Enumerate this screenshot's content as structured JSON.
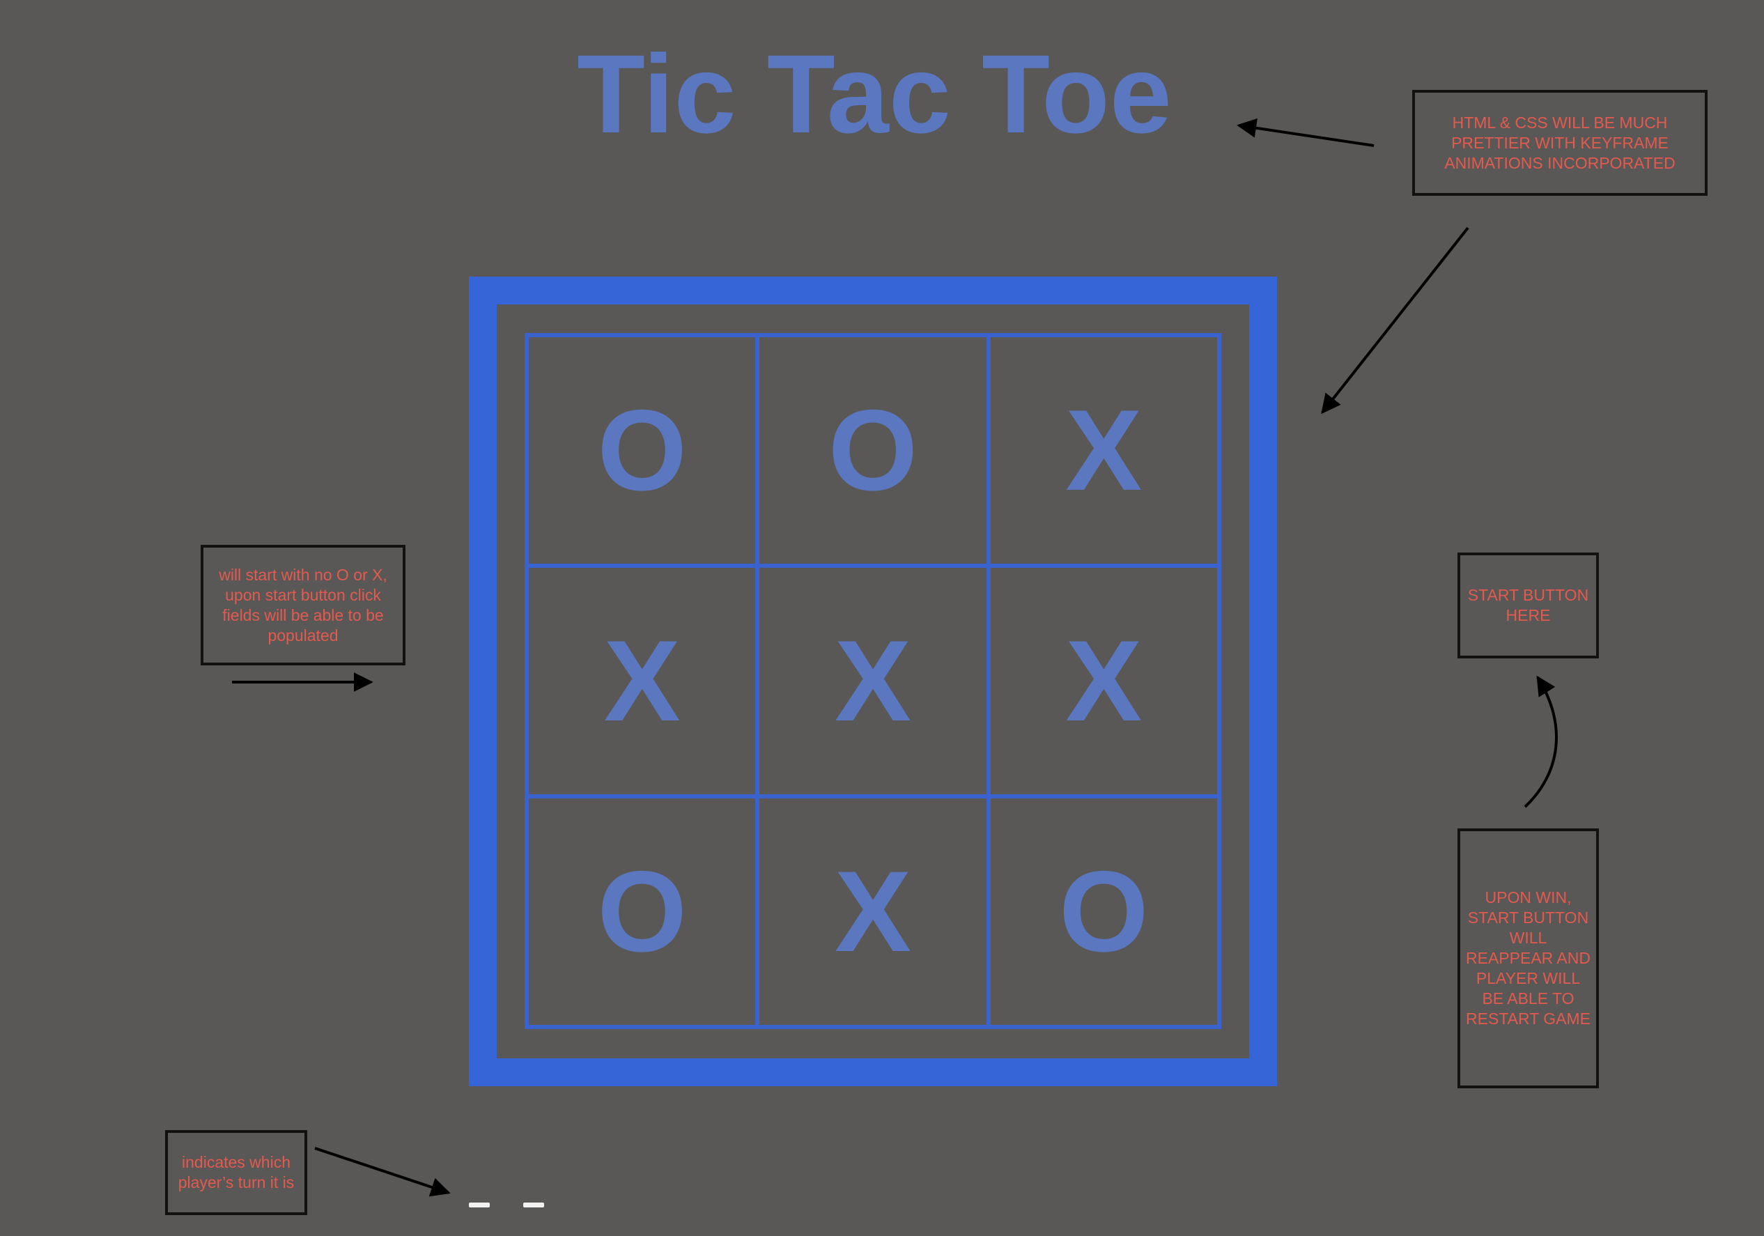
{
  "title": "Tic Tac Toe",
  "board": {
    "cells": [
      "O",
      "O",
      "X",
      "X",
      "X",
      "X",
      "O",
      "X",
      "O"
    ]
  },
  "notes": {
    "html_css": "HTML & CSS WILL BE MUCH PRETTIER WITH KEYFRAME ANIMATIONS INCORPORATED",
    "start_empty": "will start with no O or X, upon start button click fields will be able to be populated",
    "start_button": "START BUTTON HERE",
    "upon_win": "UPON WIN, START BUTTON WILL REAPPEAR AND PLAYER WILL BE ABLE TO RESTART GAME",
    "turn": "indicates which player’s  turn it is"
  },
  "colors": {
    "background": "#595857",
    "board_border": "#3565d6",
    "mark": "#5b77c0",
    "note_text": "#e35a4f",
    "note_border": "#111111",
    "turn_indicator": "#f2f2f2"
  }
}
